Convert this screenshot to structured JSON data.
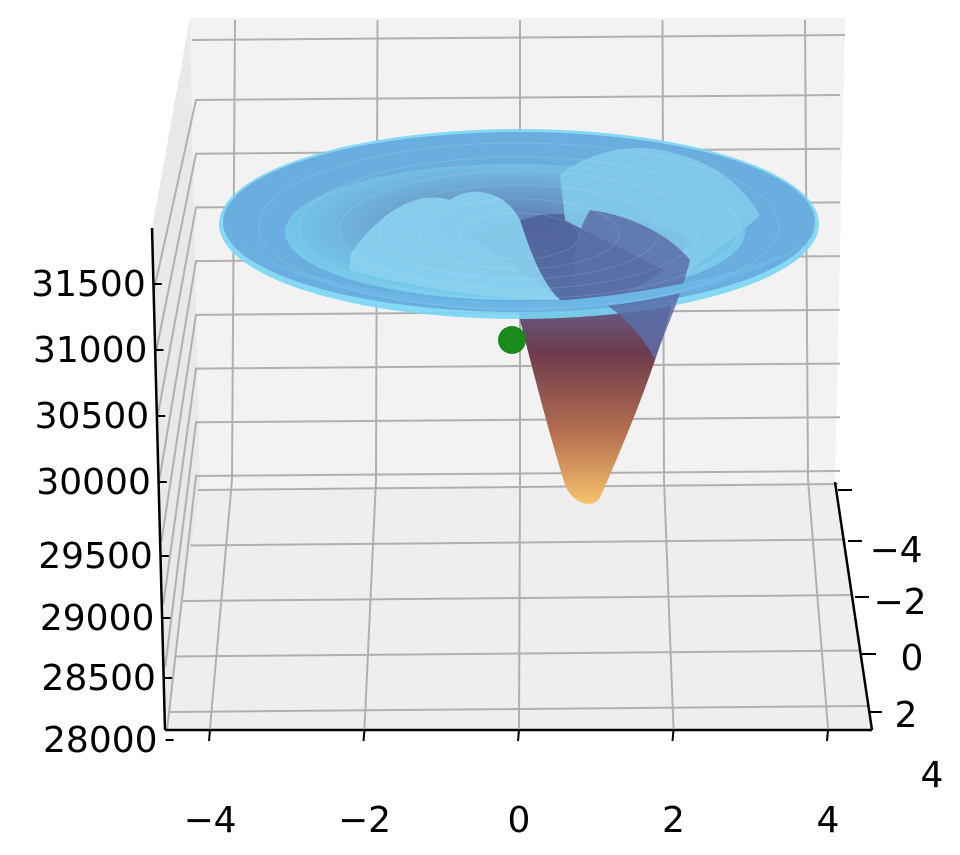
{
  "chart_data": {
    "type": "surface3d",
    "title": "",
    "xlabel": "",
    "ylabel": "",
    "zlabel": "",
    "x_ticks": [
      "−4",
      "−2",
      "0",
      "2",
      "4"
    ],
    "y_ticks": [
      "−4",
      "−2",
      "0",
      "2",
      "4"
    ],
    "z_ticks": [
      "28000",
      "28500",
      "29000",
      "29500",
      "30000",
      "30500",
      "31000",
      "31500"
    ],
    "xlim": [
      -5,
      5
    ],
    "ylim": [
      -5,
      5
    ],
    "zlim": [
      28000,
      31800
    ],
    "grid": true,
    "legend": "none",
    "surface": {
      "shape": "radial funnel",
      "rim_z": 31350,
      "center_z": 30300,
      "peaks": [
        {
          "x": -1.2,
          "y": -1.0,
          "z": 31450
        },
        {
          "x": 1.8,
          "y": -2.0,
          "z": 31650
        }
      ],
      "well_min": {
        "x": 1.2,
        "y": 1.0,
        "z": 28900
      }
    },
    "marker": {
      "x": -0.3,
      "y": 0.8,
      "z": 30900
    },
    "colors": {
      "surface_high": "#7ad6f5",
      "surface_mid": "#5e79b0",
      "surface_deep": "#6e3a4f",
      "surface_low": "#f7c36d",
      "marker": "#1a8a1a",
      "pane": "#f2f2f2",
      "grid": "#b0b0b0",
      "axis": "#000000"
    }
  }
}
